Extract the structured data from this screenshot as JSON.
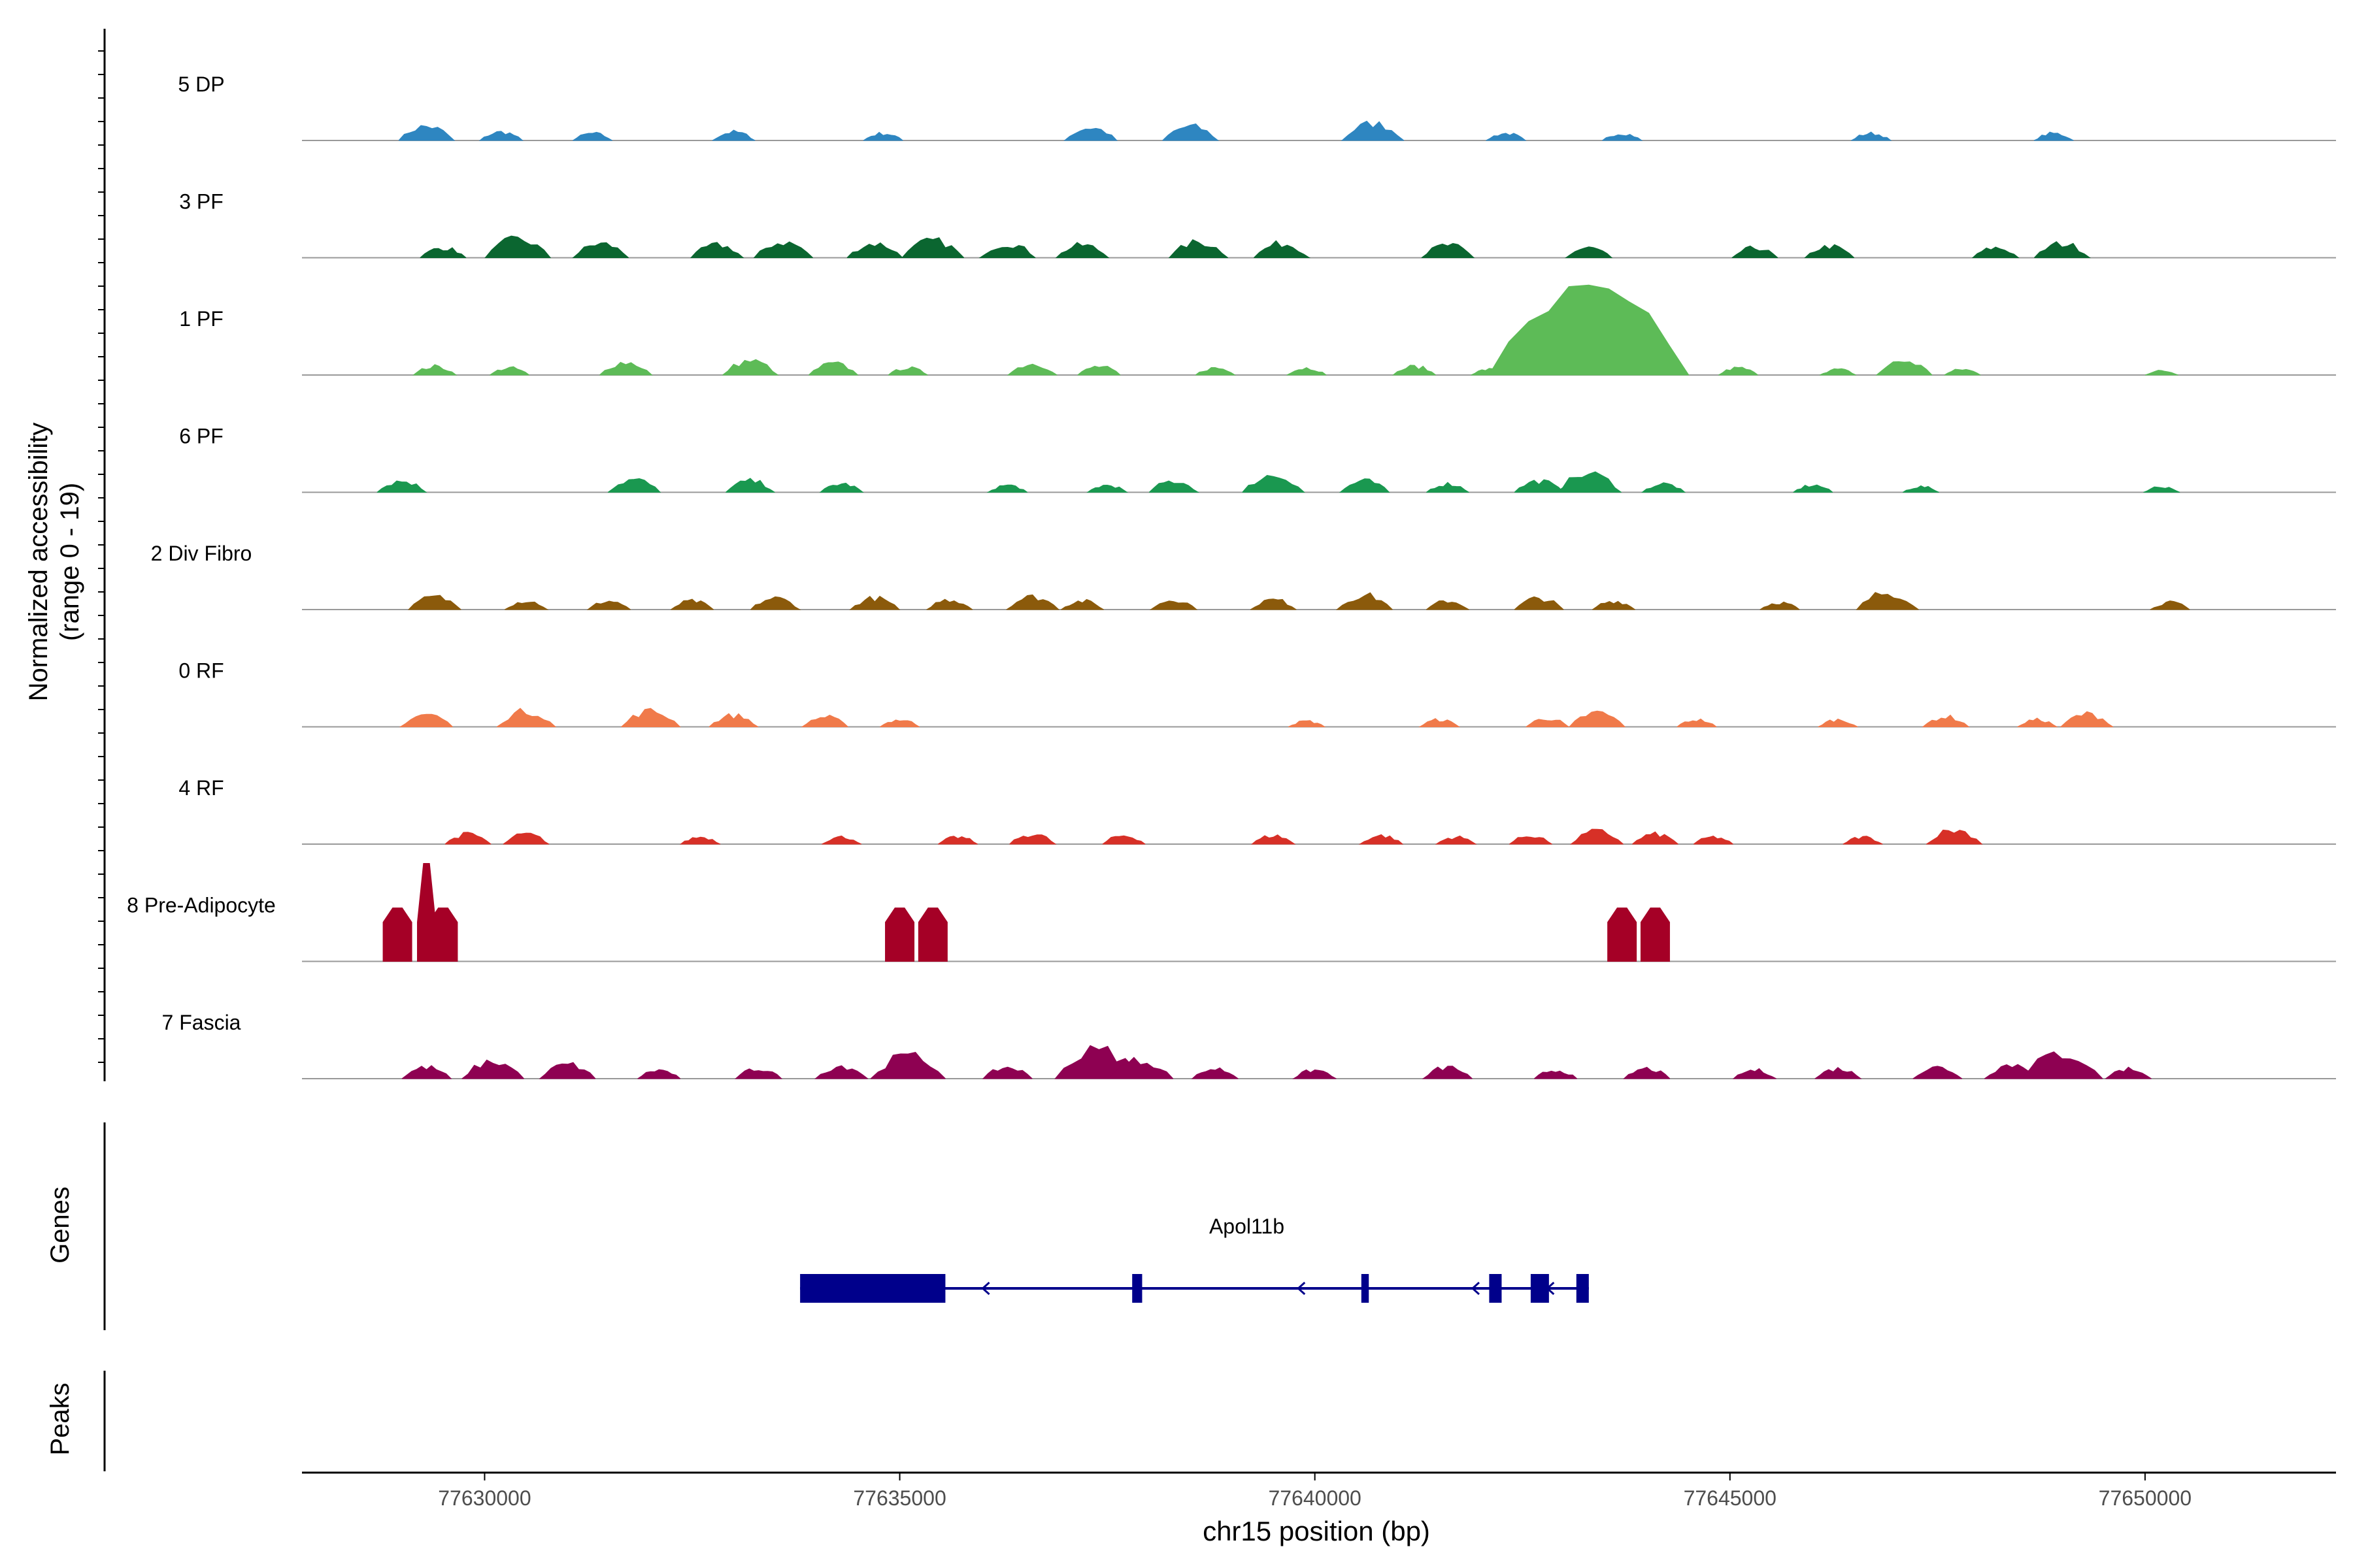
{
  "chart_data": {
    "type": "area",
    "title": "",
    "ylabel_line1": "Normalized accessibility",
    "ylabel_line2": "(range 0 - 19)",
    "xlabel": "chr15 position (bp)",
    "ylim": [
      0,
      19
    ],
    "xlim": [
      77627800,
      77652300
    ],
    "xticks": [
      77630000,
      77635000,
      77640000,
      77645000,
      77650000
    ],
    "xtick_labels": [
      "77630000",
      "77635000",
      "77640000",
      "77645000",
      "77650000"
    ],
    "genes_label": "Genes",
    "peaks_label": "Peaks",
    "tracks": [
      {
        "name": "5 DP",
        "color": "#2E86C1",
        "peaks": [
          [
            77629300,
            1.0
          ],
          [
            77630200,
            0.6
          ],
          [
            77631300,
            0.5
          ],
          [
            77633000,
            0.6
          ],
          [
            77634800,
            0.5
          ],
          [
            77637300,
            0.9
          ],
          [
            77638500,
            1.0
          ],
          [
            77640700,
            1.2
          ],
          [
            77642300,
            0.5
          ],
          [
            77643700,
            0.5
          ],
          [
            77646700,
            0.5
          ],
          [
            77648900,
            0.5
          ]
        ]
      },
      {
        "name": "3 PF",
        "color": "#0B6630",
        "peaks": [
          [
            77629500,
            0.7
          ],
          [
            77630400,
            1.3
          ],
          [
            77631400,
            1.0
          ],
          [
            77632800,
            0.9
          ],
          [
            77633600,
            1.1
          ],
          [
            77634700,
            1.0
          ],
          [
            77635400,
            1.2
          ],
          [
            77636300,
            1.0
          ],
          [
            77637200,
            0.9
          ],
          [
            77638600,
            1.1
          ],
          [
            77639600,
            1.0
          ],
          [
            77641600,
            0.9
          ],
          [
            77643300,
            0.7
          ],
          [
            77645300,
            0.7
          ],
          [
            77646200,
            0.8
          ],
          [
            77648200,
            0.7
          ],
          [
            77649000,
            1.0
          ]
        ]
      },
      {
        "name": "1 PF",
        "color": "#5DBB57",
        "peaks": [
          [
            77629400,
            0.6
          ],
          [
            77630300,
            0.5
          ],
          [
            77631700,
            0.9
          ],
          [
            77633200,
            1.0
          ],
          [
            77634200,
            0.8
          ],
          [
            77635100,
            0.5
          ],
          [
            77636600,
            0.8
          ],
          [
            77637400,
            0.6
          ],
          [
            77638800,
            0.5
          ],
          [
            77639900,
            0.5
          ],
          [
            77641200,
            0.6
          ],
          [
            77642100,
            0.4
          ],
          [
            77643300,
            5.5
          ],
          [
            77645100,
            0.5
          ],
          [
            77646300,
            0.4
          ],
          [
            77647100,
            1.0
          ],
          [
            77647800,
            0.4
          ],
          [
            77650200,
            0.3
          ]
        ]
      },
      {
        "name": "6 PF",
        "color": "#1A9850",
        "peaks": [
          [
            77629000,
            0.8
          ],
          [
            77631800,
            0.9
          ],
          [
            77633200,
            0.8
          ],
          [
            77634300,
            0.6
          ],
          [
            77636300,
            0.5
          ],
          [
            77637500,
            0.5
          ],
          [
            77638300,
            0.8
          ],
          [
            77639500,
            1.2
          ],
          [
            77640600,
            0.8
          ],
          [
            77641600,
            0.6
          ],
          [
            77642700,
            0.8
          ],
          [
            77643300,
            1.3
          ],
          [
            77644200,
            0.6
          ],
          [
            77646000,
            0.5
          ],
          [
            77647300,
            0.4
          ],
          [
            77650200,
            0.4
          ]
        ]
      },
      {
        "name": "2 Div Fibro",
        "color": "#8B5A0B",
        "peaks": [
          [
            77629400,
            0.9
          ],
          [
            77630500,
            0.6
          ],
          [
            77631500,
            0.6
          ],
          [
            77632500,
            0.6
          ],
          [
            77633500,
            0.8
          ],
          [
            77634700,
            0.8
          ],
          [
            77635600,
            0.7
          ],
          [
            77636600,
            0.9
          ],
          [
            77637200,
            0.6
          ],
          [
            77638300,
            0.7
          ],
          [
            77639500,
            0.7
          ],
          [
            77640600,
            1.0
          ],
          [
            77641600,
            0.6
          ],
          [
            77642700,
            0.8
          ],
          [
            77643600,
            0.6
          ],
          [
            77645600,
            0.5
          ],
          [
            77646900,
            1.2
          ],
          [
            77650300,
            0.5
          ]
        ]
      },
      {
        "name": "0 RF",
        "color": "#F07A4A",
        "peaks": [
          [
            77629300,
            0.9
          ],
          [
            77630500,
            1.1
          ],
          [
            77632000,
            1.1
          ],
          [
            77633000,
            0.8
          ],
          [
            77634100,
            0.7
          ],
          [
            77635000,
            0.5
          ],
          [
            77639900,
            0.4
          ],
          [
            77641500,
            0.5
          ],
          [
            77642800,
            0.6
          ],
          [
            77643400,
            1.0
          ],
          [
            77644600,
            0.5
          ],
          [
            77646300,
            0.5
          ],
          [
            77647600,
            0.7
          ],
          [
            77648700,
            0.5
          ],
          [
            77649300,
            0.9
          ]
        ]
      },
      {
        "name": "4 RF",
        "color": "#D73027",
        "peaks": [
          [
            77629800,
            0.7
          ],
          [
            77630500,
            0.7
          ],
          [
            77632600,
            0.5
          ],
          [
            77634300,
            0.5
          ],
          [
            77635700,
            0.5
          ],
          [
            77636600,
            0.7
          ],
          [
            77637700,
            0.6
          ],
          [
            77639500,
            0.6
          ],
          [
            77640800,
            0.6
          ],
          [
            77641700,
            0.5
          ],
          [
            77642600,
            0.6
          ],
          [
            77643400,
            0.9
          ],
          [
            77644100,
            0.7
          ],
          [
            77644800,
            0.5
          ],
          [
            77646600,
            0.5
          ],
          [
            77647700,
            1.0
          ]
        ]
      },
      {
        "name": "8 Pre-Adipocyte",
        "color": "#A50026",
        "peaks": [
          [
            77628950,
            3.0
          ],
          [
            77629300,
            5.5
          ],
          [
            77629500,
            3.0
          ],
          [
            77635000,
            3.0
          ],
          [
            77635400,
            3.0
          ],
          [
            77643700,
            3.0
          ],
          [
            77644100,
            3.0
          ]
        ]
      },
      {
        "name": "7 Fascia",
        "color": "#8E0152",
        "peaks": [
          [
            77629300,
            0.8
          ],
          [
            77630100,
            1.2
          ],
          [
            77631000,
            1.0
          ],
          [
            77632100,
            0.6
          ],
          [
            77633300,
            0.7
          ],
          [
            77634300,
            0.9
          ],
          [
            77635100,
            1.6
          ],
          [
            77636300,
            0.8
          ],
          [
            77637400,
            2.0
          ],
          [
            77637900,
            1.3
          ],
          [
            77638800,
            0.7
          ],
          [
            77640000,
            0.6
          ],
          [
            77641600,
            0.8
          ],
          [
            77642900,
            0.6
          ],
          [
            77644000,
            0.7
          ],
          [
            77645300,
            0.6
          ],
          [
            77646300,
            0.7
          ],
          [
            77647500,
            0.8
          ],
          [
            77648400,
            1.0
          ],
          [
            77649000,
            1.8
          ],
          [
            77649800,
            0.7
          ]
        ]
      }
    ],
    "gene": {
      "name": "Apol11b",
      "strand": "-",
      "start": 77633800,
      "end": 77643300,
      "color": "#00008B",
      "exons": [
        [
          77633800,
          77635550
        ],
        [
          77637800,
          77637920
        ],
        [
          77640560,
          77640650
        ],
        [
          77642100,
          77642250
        ],
        [
          77642600,
          77642820
        ],
        [
          77643150,
          77643300
        ]
      ]
    }
  }
}
